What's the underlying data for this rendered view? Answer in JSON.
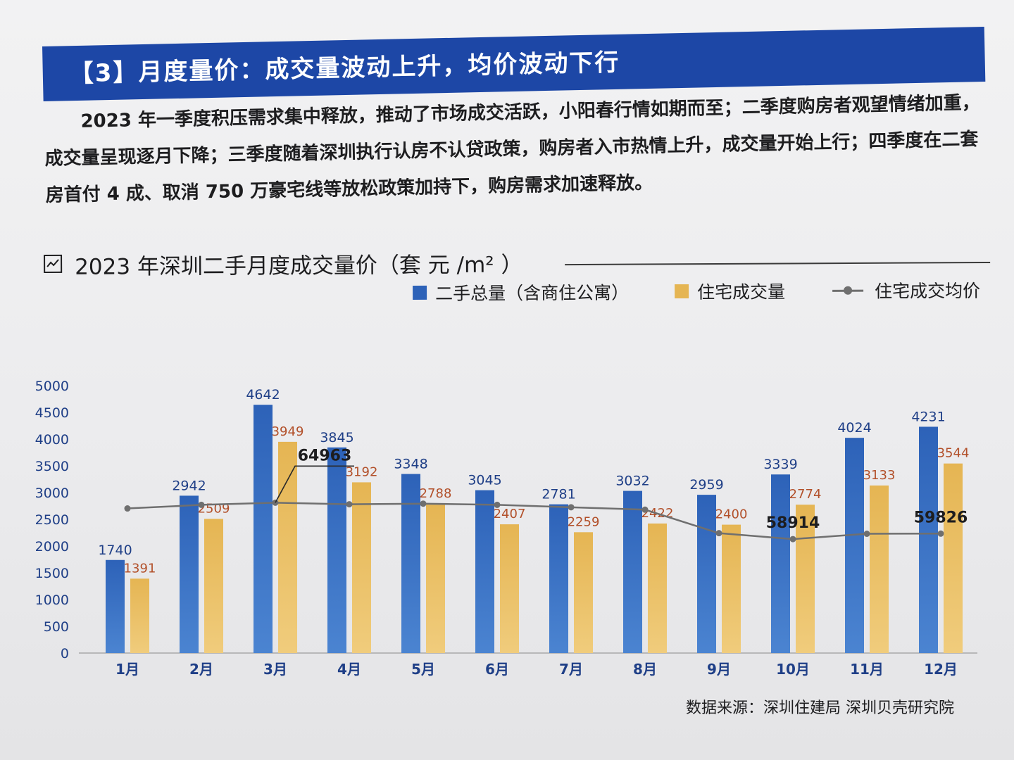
{
  "section": {
    "title": "【3】月度量价：成交量波动上升，均价波动下行",
    "intro": "2023 年一季度积压需求集中释放，推动了市场成交活跃，小阳春行情如期而至；二季度购房者观望情绪加重，成交量呈现逐月下降；三季度随着深圳执行认房不认贷政策，购房者入市热情上升，成交量开始上行；四季度在二套房首付 4 成、取消 750 万豪宅线等放松政策加持下，购房需求加速释放。"
  },
  "chart_title": "2023 年深圳二手月度成交量价（套 元 /m²  ）",
  "source": "数据来源：深圳住建局  深圳贝壳研究院",
  "colors": {
    "header_band": "#1d47a6",
    "total_bar": "#2d62b8",
    "residential_bar": "#e5b553",
    "price_line": "#6f6f6f"
  },
  "chart_data": {
    "type": "bar",
    "categories": [
      "1月",
      "2月",
      "3月",
      "4月",
      "5月",
      "6月",
      "7月",
      "8月",
      "9月",
      "10月",
      "11月",
      "12月"
    ],
    "ylim": [
      0,
      5000
    ],
    "yticks": [
      0,
      500,
      1000,
      1500,
      2000,
      2500,
      3000,
      3500,
      4000,
      4500,
      5000
    ],
    "grid": false,
    "legend_position": "top-right",
    "series": [
      {
        "name": "二手总量（含商住公寓）",
        "type": "bar",
        "values": [
          1740,
          2942,
          4642,
          3845,
          3348,
          3045,
          2781,
          3032,
          2959,
          3339,
          4024,
          4231
        ]
      },
      {
        "name": "住宅成交量",
        "type": "bar",
        "values": [
          1391,
          2509,
          3949,
          3192,
          2788,
          2407,
          2259,
          2422,
          2400,
          2774,
          3133,
          3544
        ]
      },
      {
        "name": "住宅成交均价",
        "type": "line",
        "values": [
          64000,
          64600,
          64963,
          64700,
          64800,
          64600,
          64200,
          63800,
          59900,
          58914,
          59800,
          59826
        ]
      }
    ],
    "line_labels": [
      {
        "index": 2,
        "text": "64963"
      },
      {
        "index": 9,
        "text": "58914"
      },
      {
        "index": 11,
        "text": "59826"
      }
    ]
  }
}
